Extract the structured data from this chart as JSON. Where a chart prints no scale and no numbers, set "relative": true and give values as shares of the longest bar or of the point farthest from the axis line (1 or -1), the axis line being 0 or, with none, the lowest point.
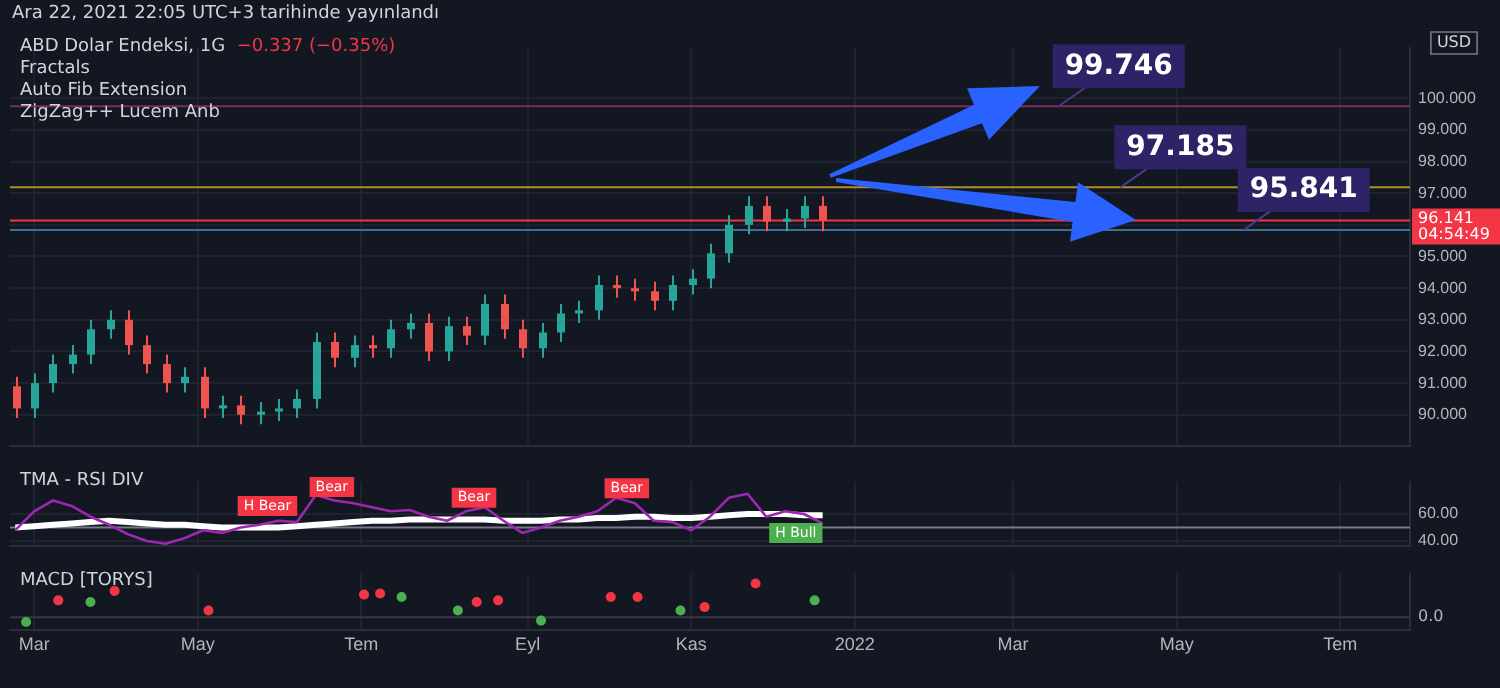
{
  "chart_data": [
    {
      "type": "candlestick",
      "title": "ABD Dolar Endeksi, 1G",
      "subtitle": "−0.337 (−0.35%)",
      "ylabel": "USD",
      "x": [
        "2021-02-22",
        "2021-03-01",
        "2021-03-08",
        "2021-03-15",
        "2021-03-22",
        "2021-03-29",
        "2021-04-05",
        "2021-04-12",
        "2021-04-19",
        "2021-04-26",
        "2021-05-03",
        "2021-05-10",
        "2021-05-17",
        "2021-05-24",
        "2021-05-31",
        "2021-06-07",
        "2021-06-14",
        "2021-06-21",
        "2021-06-28",
        "2021-07-05",
        "2021-07-12",
        "2021-07-19",
        "2021-07-26",
        "2021-08-02",
        "2021-08-09",
        "2021-08-16",
        "2021-08-23",
        "2021-08-30",
        "2021-09-06",
        "2021-09-13",
        "2021-09-20",
        "2021-09-27",
        "2021-10-04",
        "2021-10-11",
        "2021-10-18",
        "2021-10-25",
        "2021-11-01",
        "2021-11-08",
        "2021-11-15",
        "2021-11-22",
        "2021-11-29",
        "2021-12-06",
        "2021-12-13",
        "2021-12-20"
      ],
      "ohlc": [
        [
          90.9,
          91.2,
          89.9,
          90.2
        ],
        [
          90.2,
          91.3,
          89.9,
          91.0
        ],
        [
          91.0,
          91.9,
          90.7,
          91.6
        ],
        [
          91.6,
          92.2,
          91.3,
          91.9
        ],
        [
          91.9,
          93.0,
          91.6,
          92.7
        ],
        [
          92.7,
          93.3,
          92.4,
          93.0
        ],
        [
          93.0,
          93.3,
          91.9,
          92.2
        ],
        [
          92.2,
          92.5,
          91.3,
          91.6
        ],
        [
          91.6,
          91.9,
          90.7,
          91.0
        ],
        [
          91.0,
          91.5,
          90.7,
          91.2
        ],
        [
          91.2,
          91.5,
          89.9,
          90.2
        ],
        [
          90.2,
          90.6,
          89.9,
          90.3
        ],
        [
          90.3,
          90.6,
          89.7,
          90.0
        ],
        [
          90.0,
          90.4,
          89.7,
          90.1
        ],
        [
          90.1,
          90.5,
          89.8,
          90.2
        ],
        [
          90.2,
          90.8,
          89.9,
          90.5
        ],
        [
          90.5,
          92.6,
          90.2,
          92.3
        ],
        [
          92.3,
          92.6,
          91.5,
          91.8
        ],
        [
          91.8,
          92.5,
          91.5,
          92.2
        ],
        [
          92.2,
          92.5,
          91.8,
          92.1
        ],
        [
          92.1,
          93.0,
          91.8,
          92.7
        ],
        [
          92.7,
          93.2,
          92.4,
          92.9
        ],
        [
          92.9,
          93.2,
          91.7,
          92.0
        ],
        [
          92.0,
          93.1,
          91.7,
          92.8
        ],
        [
          92.8,
          93.1,
          92.2,
          92.5
        ],
        [
          92.5,
          93.8,
          92.2,
          93.5
        ],
        [
          93.5,
          93.8,
          92.4,
          92.7
        ],
        [
          92.7,
          93.0,
          91.8,
          92.1
        ],
        [
          92.1,
          92.9,
          91.8,
          92.6
        ],
        [
          92.6,
          93.5,
          92.3,
          93.2
        ],
        [
          93.2,
          93.6,
          92.9,
          93.3
        ],
        [
          93.3,
          94.4,
          93.0,
          94.1
        ],
        [
          94.1,
          94.4,
          93.7,
          94.0
        ],
        [
          94.0,
          94.3,
          93.6,
          93.9
        ],
        [
          93.9,
          94.2,
          93.3,
          93.6
        ],
        [
          93.6,
          94.4,
          93.3,
          94.1
        ],
        [
          94.1,
          94.6,
          93.8,
          94.3
        ],
        [
          94.3,
          95.4,
          94.0,
          95.1
        ],
        [
          95.1,
          96.3,
          94.8,
          96.0
        ],
        [
          96.0,
          96.9,
          95.7,
          96.6
        ],
        [
          96.6,
          96.9,
          95.8,
          96.1
        ],
        [
          96.1,
          96.5,
          95.8,
          96.2
        ],
        [
          96.2,
          96.9,
          95.9,
          96.6
        ],
        [
          96.6,
          96.9,
          95.8,
          96.141
        ]
      ],
      "colors": [
        "#ef5350",
        "#26a69a",
        "#26a69a",
        "#26a69a",
        "#26a69a",
        "#26a69a",
        "#ef5350",
        "#ef5350",
        "#ef5350",
        "#26a69a",
        "#ef5350",
        "#26a69a",
        "#ef5350",
        "#26a69a",
        "#26a69a",
        "#26a69a",
        "#26a69a",
        "#ef5350",
        "#26a69a",
        "#ef5350",
        "#26a69a",
        "#26a69a",
        "#ef5350",
        "#26a69a",
        "#ef5350",
        "#26a69a",
        "#ef5350",
        "#ef5350",
        "#26a69a",
        "#26a69a",
        "#26a69a",
        "#26a69a",
        "#ef5350",
        "#ef5350",
        "#ef5350",
        "#26a69a",
        "#26a69a",
        "#26a69a",
        "#26a69a",
        "#26a69a",
        "#ef5350",
        "#26a69a",
        "#26a69a",
        "#ef5350"
      ],
      "xlim": [
        "2021-02-20",
        "2022-07-27"
      ],
      "xticks": [
        {
          "value": "2021-03-01",
          "label": null
        },
        {
          "value": "2021-05-01",
          "label": null
        },
        {
          "value": "2021-07-01",
          "label": null
        },
        {
          "value": "2021-09-01",
          "label": null
        },
        {
          "value": "2021-11-01",
          "label": null
        },
        {
          "value": "2022-01-01",
          "label": null
        },
        {
          "value": "2022-03-01",
          "label": null
        },
        {
          "value": "2022-05-01",
          "label": null
        },
        {
          "value": "2022-07-01",
          "label": null
        }
      ],
      "ylim": [
        89,
        101.6
      ],
      "yticks": [
        {
          "value": 90,
          "label": "90.000"
        },
        {
          "value": 91,
          "label": "91.000"
        },
        {
          "value": 92,
          "label": "92.000"
        },
        {
          "value": 93,
          "label": "93.000"
        },
        {
          "value": 94,
          "label": "94.000"
        },
        {
          "value": 95,
          "label": "95.000"
        },
        {
          "value": 96,
          "label": null
        },
        {
          "value": 97,
          "label": "97.000"
        },
        {
          "value": 98,
          "label": "98.000"
        },
        {
          "value": 99,
          "label": "99.000"
        },
        {
          "value": 100,
          "label": "100.000"
        }
      ],
      "grid": true,
      "tick_labels": "y",
      "ref_lines": [
        {
          "axis": "y",
          "value": 99.746,
          "color": "#7b2d5a"
        },
        {
          "axis": "y",
          "value": 97.185,
          "color": "#b08d2a"
        },
        {
          "axis": "y",
          "value": 95.841,
          "color": "#3f6f8f"
        },
        {
          "axis": "y",
          "value": 96.141,
          "label": "96.141",
          "color": "#f23645"
        }
      ],
      "annotations": [
        "Ara 22, 2021 22:05 UTC+3 tarihinde yayınlandı",
        "Fractals",
        "Auto Fib Extension",
        "ZigZag++ Lucem Anb",
        {
          "text": "99.746",
          "x": "2022-03-18",
          "y": 99.746
        },
        {
          "text": "97.185",
          "x": "2022-04-10",
          "y": 97.185
        },
        {
          "text": "95.841",
          "x": "2022-05-26",
          "y": 95.841
        },
        "04:54:49"
      ]
    },
    {
      "type": "line",
      "title": "TMA - RSI DIV",
      "x": [
        "2021-02-22",
        "2021-03-01",
        "2021-03-08",
        "2021-03-15",
        "2021-03-22",
        "2021-03-29",
        "2021-04-05",
        "2021-04-12",
        "2021-04-19",
        "2021-04-26",
        "2021-05-03",
        "2021-05-10",
        "2021-05-17",
        "2021-05-24",
        "2021-05-31",
        "2021-06-07",
        "2021-06-14",
        "2021-06-21",
        "2021-06-28",
        "2021-07-05",
        "2021-07-12",
        "2021-07-19",
        "2021-07-26",
        "2021-08-02",
        "2021-08-09",
        "2021-08-16",
        "2021-08-23",
        "2021-08-30",
        "2021-09-06",
        "2021-09-13",
        "2021-09-20",
        "2021-09-27",
        "2021-10-04",
        "2021-10-11",
        "2021-10-18",
        "2021-10-25",
        "2021-11-01",
        "2021-11-08",
        "2021-11-15",
        "2021-11-22",
        "2021-11-29",
        "2021-12-06",
        "2021-12-13",
        "2021-12-20"
      ],
      "series": [
        {
          "color": "#9c27b0",
          "values": [
            48,
            62,
            70,
            66,
            58,
            52,
            45,
            40,
            38,
            42,
            48,
            46,
            50,
            52,
            55,
            54,
            74,
            70,
            68,
            65,
            62,
            63,
            58,
            55,
            62,
            65,
            55,
            46,
            50,
            55,
            58,
            62,
            72,
            68,
            55,
            54,
            48,
            58,
            72,
            75,
            58,
            62,
            60,
            53
          ]
        },
        {
          "color": "#ffffff",
          "values": [
            50,
            51,
            52,
            53,
            54,
            55,
            54,
            53,
            52,
            52,
            51,
            50,
            50,
            50,
            50,
            51,
            52,
            53,
            54,
            55,
            55,
            56,
            56,
            56,
            56,
            56,
            55,
            55,
            55,
            56,
            56,
            57,
            57,
            58,
            58,
            57,
            57,
            58,
            59,
            60,
            60,
            60,
            59,
            59
          ]
        }
      ],
      "xlim": [
        "2021-02-20",
        "2022-07-27"
      ],
      "xticks": [
        {
          "value": "2021-03-01",
          "label": null
        },
        {
          "value": "2021-05-01",
          "label": null
        },
        {
          "value": "2021-07-01",
          "label": null
        },
        {
          "value": "2021-09-01",
          "label": null
        },
        {
          "value": "2021-11-01",
          "label": null
        },
        {
          "value": "2022-01-01",
          "label": null
        },
        {
          "value": "2022-03-01",
          "label": null
        },
        {
          "value": "2022-05-01",
          "label": null
        },
        {
          "value": "2022-07-01",
          "label": null
        }
      ],
      "ylim": [
        36,
        84
      ],
      "yticks": [
        {
          "value": 40,
          "label": "40.00"
        },
        {
          "value": 60,
          "label": "60.00"
        }
      ],
      "grid": true,
      "tick_labels": "y",
      "ref_lines": [
        {
          "axis": "y",
          "value": 50,
          "color": "#787b86"
        }
      ],
      "annotations": [
        {
          "text": "H Bear",
          "x": "2021-05-27",
          "y": 66
        },
        {
          "text": "Bear",
          "x": "2021-06-20",
          "y": 80
        },
        {
          "text": "Bear",
          "x": "2021-08-12",
          "y": 72
        },
        {
          "text": "Bear",
          "x": "2021-10-08",
          "y": 79
        },
        {
          "text": "H Bull",
          "x": "2021-12-10",
          "y": 46
        }
      ]
    },
    {
      "type": "scatter",
      "title": "MACD [TORYS]",
      "relative": true,
      "marker": "circle",
      "series": [
        {
          "color": "#f23645",
          "x": [
            "2021-03-10",
            "2021-03-31",
            "2021-05-05",
            "2021-07-02",
            "2021-07-08",
            "2021-08-13",
            "2021-08-21",
            "2021-10-02",
            "2021-10-12",
            "2021-11-06",
            "2021-11-25"
          ],
          "values": [
            0.5,
            0.78,
            0.2,
            0.67,
            0.7,
            0.45,
            0.5,
            0.6,
            0.6,
            0.3,
            1
          ]
        },
        {
          "color": "#4caf50",
          "x": [
            "2021-02-26",
            "2021-03-22",
            "2021-07-16",
            "2021-08-06",
            "2021-09-06",
            "2021-10-28",
            "2021-12-17"
          ],
          "values": [
            -0.14,
            0.45,
            0.6,
            0.2,
            -0.1,
            0.2,
            0.5
          ]
        }
      ],
      "xlim": [
        "2021-02-20",
        "2022-07-27"
      ],
      "xticks": [
        {
          "value": "2021-03-01",
          "label": "Mar"
        },
        {
          "value": "2021-05-01",
          "label": "May"
        },
        {
          "value": "2021-07-01",
          "label": "Tem"
        },
        {
          "value": "2021-09-01",
          "label": "Eyl"
        },
        {
          "value": "2021-11-01",
          "label": "Kas"
        },
        {
          "value": "2022-01-01",
          "label": "2022"
        },
        {
          "value": "2022-03-01",
          "label": "Mar"
        },
        {
          "value": "2022-05-01",
          "label": "May"
        },
        {
          "value": "2022-07-01",
          "label": "Tem"
        }
      ],
      "grid": true,
      "tick_labels": "x",
      "annotations": [
        "0.0"
      ]
    }
  ]
}
